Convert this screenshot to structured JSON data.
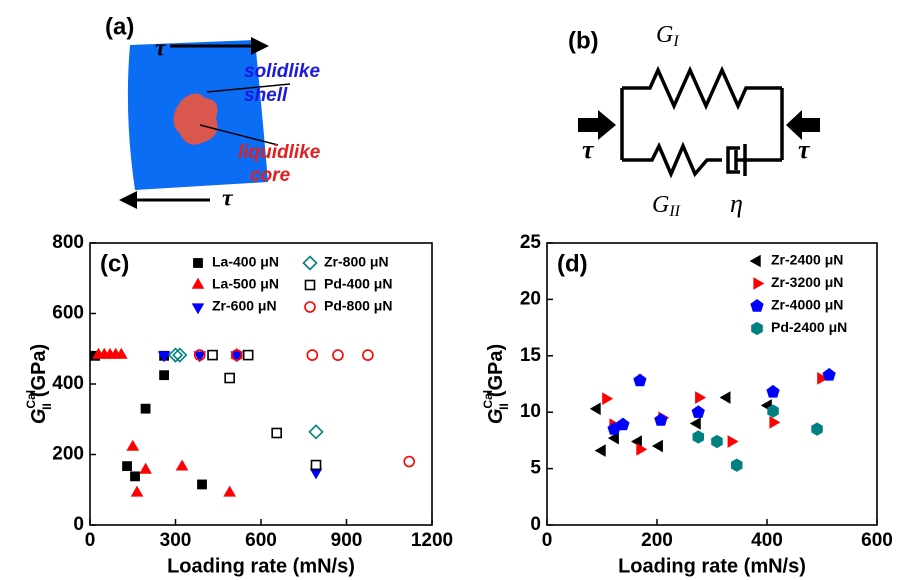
{
  "diagrams": {
    "a": {
      "panel": "(a)",
      "tau_top": "τ",
      "tau_bottom": "τ",
      "shell_1": "solidlike",
      "shell_2": "shell",
      "core_1": "liquidlike",
      "core_2": "core"
    },
    "b": {
      "panel": "(b)",
      "g1": {
        "symbol": "G",
        "sub": "I"
      },
      "g2": {
        "symbol": "G",
        "sub": "II"
      },
      "eta": "η",
      "tau_left": "τ",
      "tau_right": "τ"
    }
  },
  "chart_data": [
    {
      "type": "scatter",
      "panel": "(c)",
      "xlabel": "Loading rate (mN/s)",
      "ylabel": {
        "symbol": "G",
        "sup": "Cal",
        "sub": "II",
        "unit": "(GPa)"
      },
      "xlim": [
        0,
        1200
      ],
      "xticks": [
        0,
        300,
        600,
        900,
        1200
      ],
      "ylim": [
        0,
        800
      ],
      "yticks": [
        0,
        200,
        400,
        600,
        800
      ],
      "legend_rows": 3,
      "series": [
        {
          "name": "La-400 μN",
          "color": "#000000",
          "marker": "square",
          "filled": true,
          "x": [
            18,
            260,
            260,
            195,
            130,
            158,
            393
          ],
          "values": [
            480,
            480,
            425,
            330,
            167,
            138,
            115
          ]
        },
        {
          "name": "La-500 μN",
          "color": "#ff0000",
          "marker": "triangle-up",
          "filled": true,
          "x": [
            30,
            50,
            70,
            90,
            110,
            150,
            195,
            165,
            323,
            490,
            515
          ],
          "values": [
            482,
            482,
            482,
            482,
            482,
            221,
            156,
            91,
            165,
            91,
            482
          ]
        },
        {
          "name": "Zr-600 μN",
          "color": "#0000ff",
          "marker": "triangle-down",
          "filled": true,
          "x": [
            260,
            385,
            515,
            793
          ],
          "values": [
            482,
            482,
            482,
            150
          ]
        },
        {
          "name": "Zr-800 μN",
          "color": "#008080",
          "marker": "diamond",
          "filled": false,
          "x": [
            300,
            315,
            793
          ],
          "values": [
            482,
            482,
            264
          ]
        },
        {
          "name": "Pd-400 μN",
          "color": "#000000",
          "marker": "square",
          "filled": false,
          "x": [
            430,
            555,
            490,
            655,
            793
          ],
          "values": [
            482,
            482,
            417,
            261,
            170
          ]
        },
        {
          "name": "Pd-800 μN",
          "color": "#ff0000",
          "marker": "circle",
          "filled": false,
          "x": [
            385,
            515,
            780,
            870,
            975,
            1120
          ],
          "values": [
            482,
            482,
            482,
            482,
            482,
            180
          ]
        }
      ]
    },
    {
      "type": "scatter",
      "panel": "(d)",
      "xlabel": "Loading rate (mN/s)",
      "ylabel": {
        "symbol": "G",
        "sup": "Cal",
        "sub": "II",
        "unit": "(GPa)"
      },
      "xlim": [
        0,
        600
      ],
      "xticks": [
        0,
        200,
        400,
        600
      ],
      "ylim": [
        0,
        25
      ],
      "yticks": [
        0,
        5,
        10,
        15,
        20,
        25
      ],
      "legend_rows": 4,
      "series": [
        {
          "name": "Zr-2400 μN",
          "color": "#000000",
          "marker": "triangle-left",
          "filled": true,
          "x": [
            100,
            91,
            124,
            166,
            204,
            273,
            327,
            402
          ],
          "values": [
            6.6,
            10.3,
            7.7,
            7.4,
            7.0,
            9.0,
            11.3,
            10.6
          ]
        },
        {
          "name": "Zr-3200 μN",
          "color": "#ff0000",
          "marker": "triangle-right",
          "filled": true,
          "x": [
            107,
            120,
            169,
            209,
            276,
            335,
            411,
            498
          ],
          "values": [
            11.2,
            8.9,
            6.7,
            9.5,
            11.3,
            7.4,
            9.1,
            13.0
          ]
        },
        {
          "name": "Zr-4000 μN",
          "color": "#0000ff",
          "marker": "pentagon",
          "filled": true,
          "x": [
            122,
            138,
            169,
            207,
            275,
            411,
            513
          ],
          "values": [
            8.5,
            8.9,
            12.8,
            9.3,
            10.0,
            11.8,
            13.3
          ]
        },
        {
          "name": "Pd-2400 μN",
          "color": "#008080",
          "marker": "hexagon",
          "filled": true,
          "x": [
            275,
            309,
            345,
            411,
            491
          ],
          "values": [
            7.8,
            7.4,
            5.3,
            10.1,
            8.5
          ]
        }
      ]
    }
  ]
}
